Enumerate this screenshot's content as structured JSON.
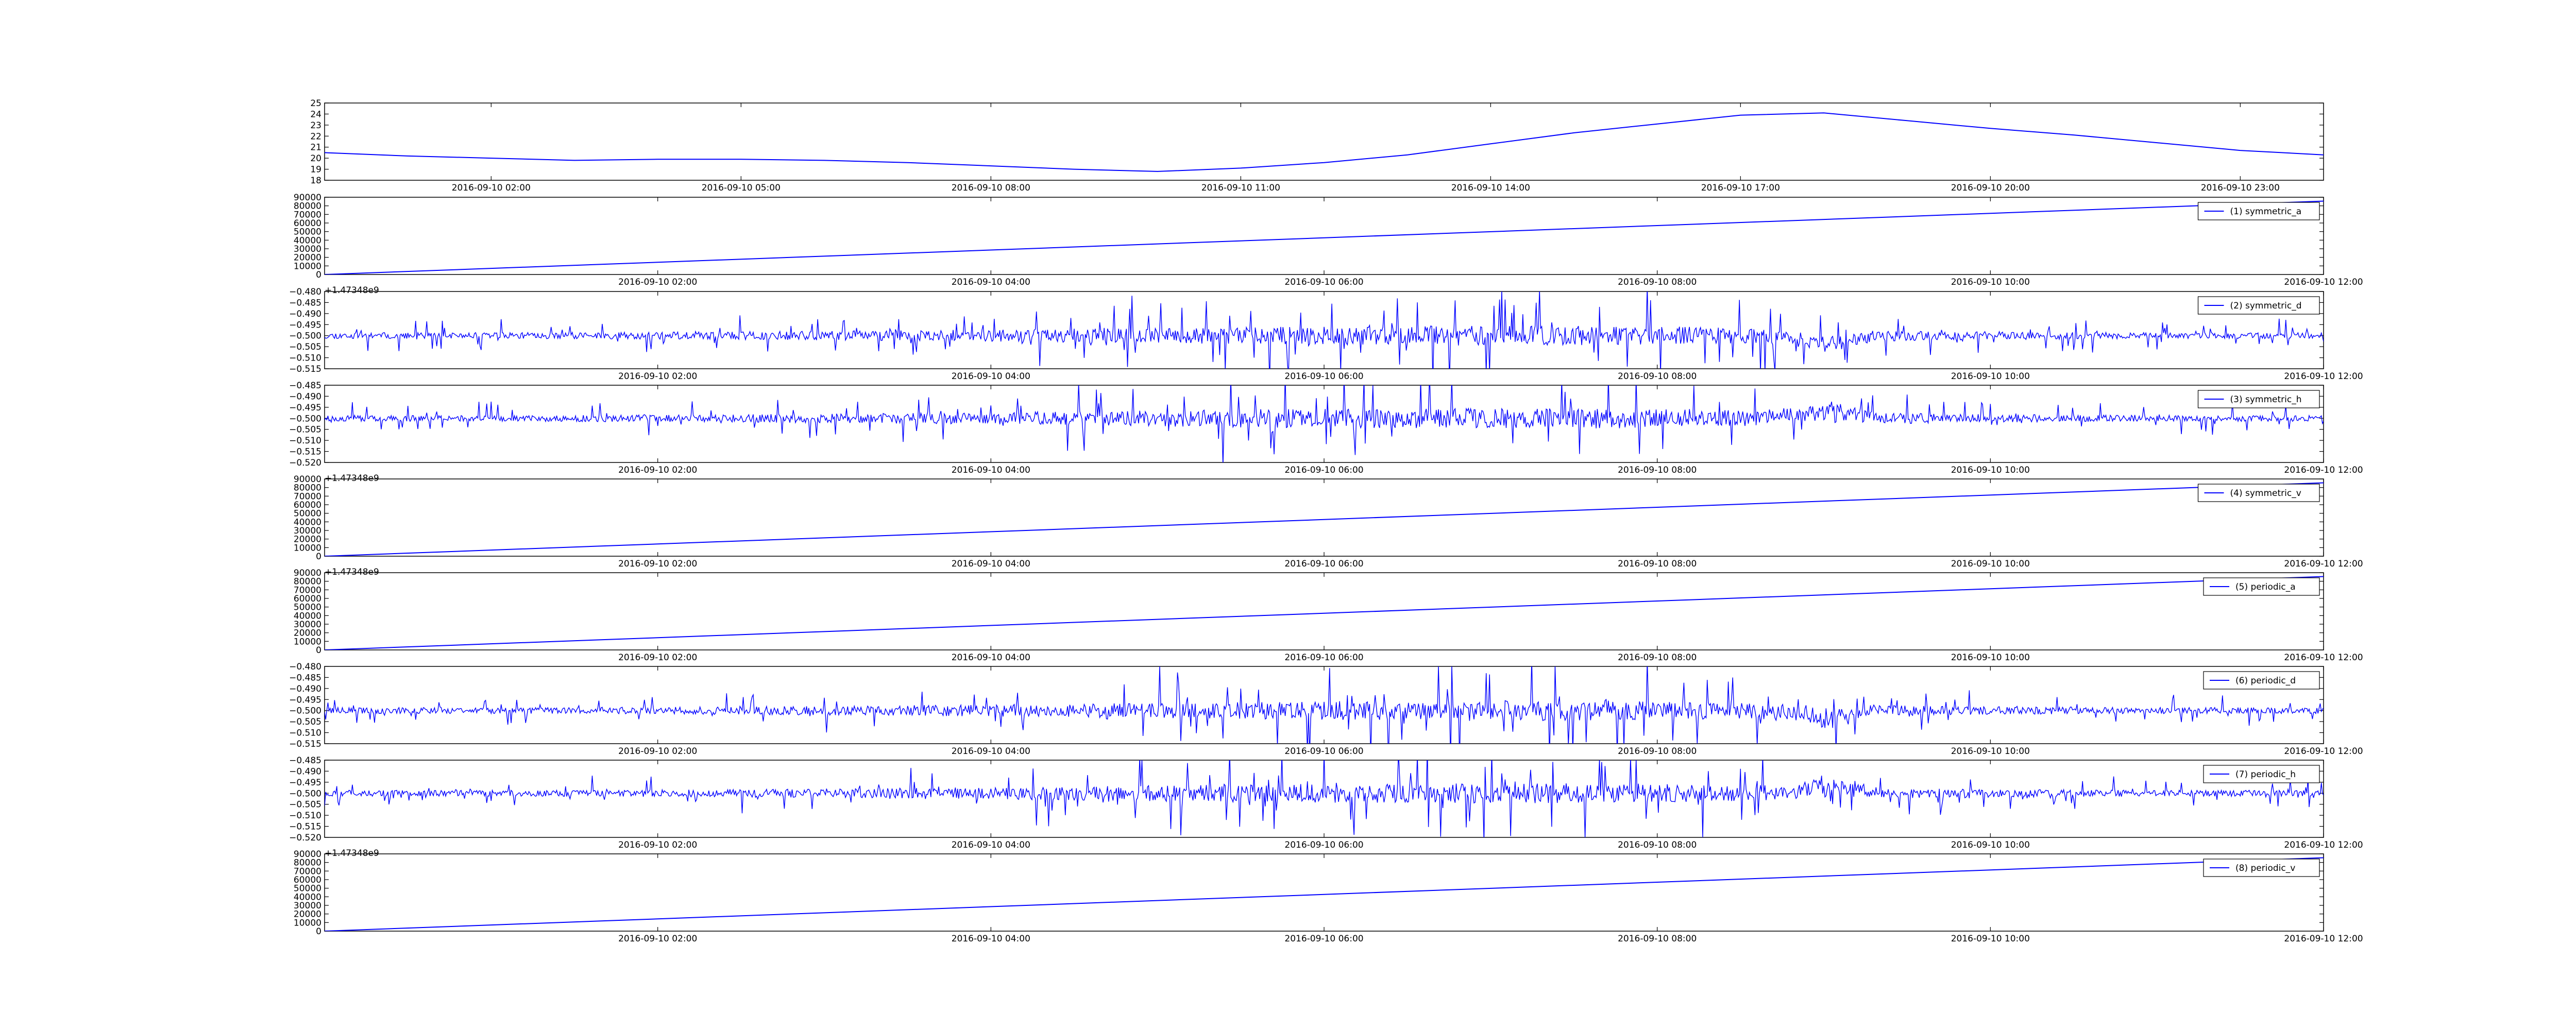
{
  "figure": {
    "line_color": "#0000ff",
    "axis_color": "#000000",
    "background": "#ffffff"
  },
  "chart_data": [
    {
      "type": "line",
      "title": "",
      "legend": null,
      "signal": "smooth",
      "ylim": [
        18,
        25
      ],
      "yticks": [
        "18",
        "19",
        "20",
        "21",
        "22",
        "23",
        "24",
        "25"
      ],
      "xticks": [
        "2016-09-10 02:00",
        "2016-09-10 05:00",
        "2016-09-10 08:00",
        "2016-09-10 11:00",
        "2016-09-10 14:00",
        "2016-09-10 17:00",
        "2016-09-10 20:00",
        "2016-09-10 23:00"
      ],
      "offset_text": "",
      "series": [
        {
          "x": [
            "2016-09-10 00:00",
            "2016-09-10 01:00",
            "2016-09-10 02:00",
            "2016-09-10 03:00",
            "2016-09-10 04:00",
            "2016-09-10 05:00",
            "2016-09-10 06:00",
            "2016-09-10 07:00",
            "2016-09-10 08:00",
            "2016-09-10 09:00",
            "2016-09-10 10:00",
            "2016-09-10 11:00",
            "2016-09-10 12:00",
            "2016-09-10 13:00",
            "2016-09-10 14:00",
            "2016-09-10 15:00",
            "2016-09-10 16:00",
            "2016-09-10 17:00",
            "2016-09-10 18:00",
            "2016-09-10 19:00",
            "2016-09-10 20:00",
            "2016-09-10 21:00",
            "2016-09-10 22:00",
            "2016-09-10 23:00",
            "2016-09-11 00:00"
          ],
          "values": [
            20.5,
            20.2,
            20.0,
            19.8,
            19.9,
            19.9,
            19.8,
            19.6,
            19.3,
            19.0,
            18.8,
            19.1,
            19.6,
            20.3,
            21.3,
            22.3,
            23.1,
            23.9,
            24.1,
            23.4,
            22.7,
            22.1,
            21.4,
            20.7,
            20.3
          ]
        }
      ]
    },
    {
      "type": "line",
      "title": "",
      "legend": "(1) symmetric_a",
      "signal": "ramp",
      "ylim": [
        0,
        90000
      ],
      "yticks": [
        "0",
        "10000",
        "20000",
        "30000",
        "40000",
        "50000",
        "60000",
        "70000",
        "80000",
        "90000"
      ],
      "xticks": [
        "2016-09-10 02:00",
        "2016-09-10 04:00",
        "2016-09-10 06:00",
        "2016-09-10 08:00",
        "2016-09-10 10:00",
        "2016-09-10 12:00"
      ],
      "offset_text": "+1.47348e9",
      "series": [
        {
          "name": "(1) symmetric_a",
          "x": [
            "2016-09-10 00:00",
            "2016-09-10 12:00"
          ],
          "values": [
            0,
            85500
          ]
        }
      ]
    },
    {
      "type": "line",
      "title": "",
      "legend": "(2) symmetric_d",
      "signal": "noise",
      "noise": {
        "base": -0.5,
        "amplitude_profile": [
          0.0025,
          0.0025,
          0.003,
          0.004,
          0.0055,
          0.007,
          0.008,
          0.0085,
          0.006,
          0.0035,
          0.0025,
          0.0025
        ],
        "dip_center": 0.75,
        "dip_depth": -0.006,
        "seed": 11
      },
      "ylim": [
        -0.515,
        -0.48
      ],
      "yticks": [
        "-0.515",
        "-0.510",
        "-0.505",
        "-0.500",
        "-0.495",
        "-0.490",
        "-0.485",
        "-0.480"
      ],
      "xticks": [
        "2016-09-10 02:00",
        "2016-09-10 04:00",
        "2016-09-10 06:00",
        "2016-09-10 08:00",
        "2016-09-10 10:00",
        "2016-09-10 12:00"
      ],
      "offset_text": "",
      "series": [
        {
          "name": "(2) symmetric_d",
          "x_range": [
            "2016-09-10 00:00",
            "2016-09-10 12:00"
          ]
        }
      ]
    },
    {
      "type": "line",
      "title": "",
      "legend": "(3) symmetric_h",
      "signal": "noise",
      "noise": {
        "base": -0.5,
        "amplitude_profile": [
          0.0025,
          0.0025,
          0.003,
          0.004,
          0.0055,
          0.0075,
          0.008,
          0.0085,
          0.006,
          0.0035,
          0.0025,
          0.0025
        ],
        "dip_center": 0.75,
        "dip_depth": 0.006,
        "seed": 23
      },
      "ylim": [
        -0.52,
        -0.485
      ],
      "yticks": [
        "-0.520",
        "-0.515",
        "-0.510",
        "-0.505",
        "-0.500",
        "-0.495",
        "-0.490",
        "-0.485"
      ],
      "xticks": [
        "2016-09-10 02:00",
        "2016-09-10 04:00",
        "2016-09-10 06:00",
        "2016-09-10 08:00",
        "2016-09-10 10:00",
        "2016-09-10 12:00"
      ],
      "offset_text": "+1.47348e9",
      "series": [
        {
          "name": "(3) symmetric_h",
          "x_range": [
            "2016-09-10 00:00",
            "2016-09-10 12:00"
          ]
        }
      ]
    },
    {
      "type": "line",
      "title": "",
      "legend": "(4) symmetric_v",
      "signal": "ramp",
      "ylim": [
        0,
        90000
      ],
      "yticks": [
        "0",
        "10000",
        "20000",
        "30000",
        "40000",
        "50000",
        "60000",
        "70000",
        "80000",
        "90000"
      ],
      "xticks": [
        "2016-09-10 02:00",
        "2016-09-10 04:00",
        "2016-09-10 06:00",
        "2016-09-10 08:00",
        "2016-09-10 10:00",
        "2016-09-10 12:00"
      ],
      "offset_text": "+1.47348e9",
      "series": [
        {
          "name": "(4) symmetric_v",
          "x": [
            "2016-09-10 00:00",
            "2016-09-10 12:00"
          ],
          "values": [
            0,
            85500
          ]
        }
      ]
    },
    {
      "type": "line",
      "title": "",
      "legend": "(5) periodic_a",
      "signal": "ramp",
      "ylim": [
        0,
        90000
      ],
      "yticks": [
        "0",
        "10000",
        "20000",
        "30000",
        "40000",
        "50000",
        "60000",
        "70000",
        "80000",
        "90000"
      ],
      "xticks": [
        "2016-09-10 02:00",
        "2016-09-10 04:00",
        "2016-09-10 06:00",
        "2016-09-10 08:00",
        "2016-09-10 10:00",
        "2016-09-10 12:00"
      ],
      "offset_text": "",
      "series": [
        {
          "name": "(5) periodic_a",
          "x": [
            "2016-09-10 00:00",
            "2016-09-10 12:00"
          ],
          "values": [
            0,
            85500
          ]
        }
      ]
    },
    {
      "type": "line",
      "title": "",
      "legend": "(6) periodic_d",
      "signal": "noise",
      "noise": {
        "base": -0.5,
        "amplitude_profile": [
          0.0025,
          0.0025,
          0.003,
          0.004,
          0.0055,
          0.007,
          0.008,
          0.0085,
          0.006,
          0.0035,
          0.0025,
          0.0025
        ],
        "dip_center": 0.75,
        "dip_depth": -0.006,
        "seed": 37
      },
      "ylim": [
        -0.515,
        -0.48
      ],
      "yticks": [
        "-0.515",
        "-0.510",
        "-0.505",
        "-0.500",
        "-0.495",
        "-0.490",
        "-0.485",
        "-0.480"
      ],
      "xticks": [
        "2016-09-10 02:00",
        "2016-09-10 04:00",
        "2016-09-10 06:00",
        "2016-09-10 08:00",
        "2016-09-10 10:00",
        "2016-09-10 12:00"
      ],
      "offset_text": "",
      "series": [
        {
          "name": "(6) periodic_d",
          "x_range": [
            "2016-09-10 00:00",
            "2016-09-10 12:00"
          ]
        }
      ]
    },
    {
      "type": "line",
      "title": "",
      "legend": "(7) periodic_h",
      "signal": "noise",
      "noise": {
        "base": -0.5,
        "amplitude_profile": [
          0.0025,
          0.0025,
          0.003,
          0.004,
          0.0055,
          0.0075,
          0.008,
          0.0085,
          0.006,
          0.0035,
          0.0025,
          0.0025
        ],
        "dip_center": 0.75,
        "dip_depth": 0.006,
        "seed": 53
      },
      "ylim": [
        -0.52,
        -0.485
      ],
      "yticks": [
        "-0.520",
        "-0.515",
        "-0.510",
        "-0.505",
        "-0.500",
        "-0.495",
        "-0.490",
        "-0.485"
      ],
      "xticks": [
        "2016-09-10 02:00",
        "2016-09-10 04:00",
        "2016-09-10 06:00",
        "2016-09-10 08:00",
        "2016-09-10 10:00",
        "2016-09-10 12:00"
      ],
      "offset_text": "+1.47348e9",
      "series": [
        {
          "name": "(7) periodic_h",
          "x_range": [
            "2016-09-10 00:00",
            "2016-09-10 12:00"
          ]
        }
      ]
    },
    {
      "type": "line",
      "title": "",
      "legend": "(8) periodic_v",
      "signal": "ramp",
      "ylim": [
        0,
        90000
      ],
      "yticks": [
        "0",
        "10000",
        "20000",
        "30000",
        "40000",
        "50000",
        "60000",
        "70000",
        "80000",
        "90000"
      ],
      "xticks": [
        "2016-09-10 02:00",
        "2016-09-10 04:00",
        "2016-09-10 06:00",
        "2016-09-10 08:00",
        "2016-09-10 10:00",
        "2016-09-10 12:00"
      ],
      "offset_text": "",
      "series": [
        {
          "name": "(8) periodic_v",
          "x": [
            "2016-09-10 00:00",
            "2016-09-10 12:00"
          ],
          "values": [
            0,
            85500
          ]
        }
      ]
    }
  ]
}
